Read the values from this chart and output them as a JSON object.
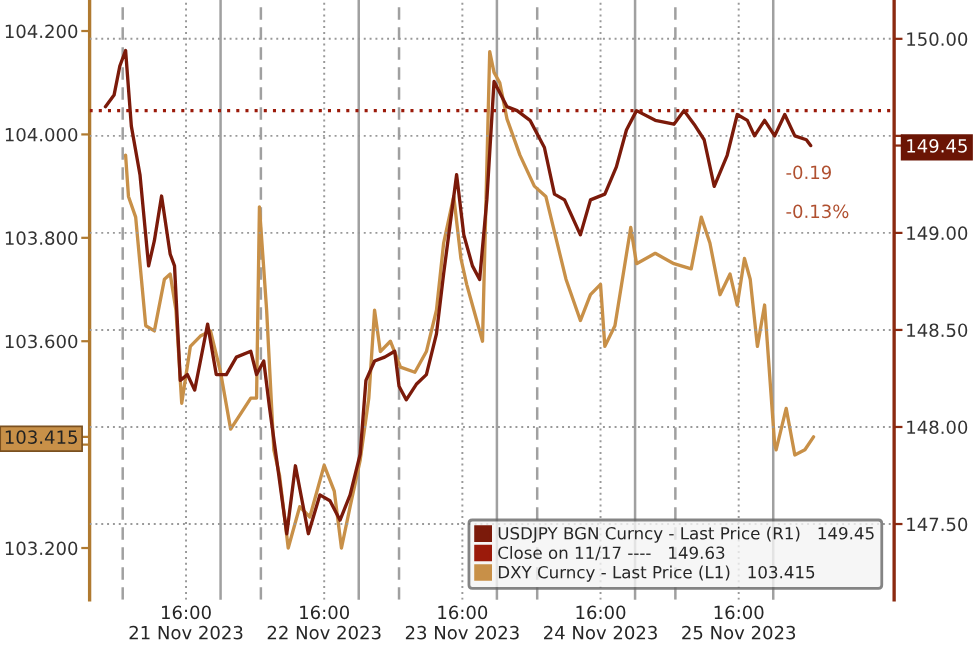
{
  "chart_data": {
    "type": "line",
    "xlim": [
      "2023-11-20T23:15",
      "2023-11-26T19:00"
    ],
    "xticks": [
      {
        "value": "2023-11-21T16:00",
        "label": "16:00\n21 Nov 2023"
      },
      {
        "value": "2023-11-22T16:00",
        "label": "16:00\n22 Nov 2023"
      },
      {
        "value": "2023-11-23T16:00",
        "label": "16:00\n23 Nov 2023"
      },
      {
        "value": "2023-11-24T16:00",
        "label": "16:00\n24 Nov 2023"
      },
      {
        "value": "2023-11-25T16:00",
        "label": "16:00\n25 Nov 2023"
      }
    ],
    "ylim": [
      103.1,
      104.26
    ],
    "yticks": [
      {
        "value": 103.2,
        "label": "103.200"
      },
      {
        "value": 103.4,
        "label": null
      },
      {
        "value": 103.6,
        "label": "103.600"
      },
      {
        "value": 103.8,
        "label": "103.800"
      },
      {
        "value": 104.0,
        "label": "104.000"
      },
      {
        "value": 104.2,
        "label": "104.200"
      },
      {
        "value": 103.415,
        "label": "103.415"
      }
    ],
    "y2lim": [
      147.11,
      150.2
    ],
    "y2ticks": [
      {
        "value": 147.5,
        "label": "147.50"
      },
      {
        "value": 148.0,
        "label": "148.00"
      },
      {
        "value": 148.5,
        "label": "148.50"
      },
      {
        "value": 149.0,
        "label": "149.00"
      },
      {
        "value": 149.5,
        "label": null
      },
      {
        "value": 150.0,
        "label": "150.00"
      },
      {
        "value": 149.45,
        "label": "149.45"
      }
    ],
    "grid": true,
    "legend": "bottom right",
    "series": [
      {
        "name": "USDJPY BGN Curncy - Last Price (R1)   149.45",
        "color": "#7b1a0a",
        "axis": "y2",
        "x": [
          "2023-11-21T02:00",
          "2023-11-21T03:30",
          "2023-11-21T04:30",
          "2023-11-21T05:30",
          "2023-11-21T06:30",
          "2023-11-21T08:00",
          "2023-11-21T09:30",
          "2023-11-21T10:30",
          "2023-11-21T11:45",
          "2023-11-21T13:15",
          "2023-11-21T14:00",
          "2023-11-21T15:00",
          "2023-11-21T16:15",
          "2023-11-21T17:30",
          "2023-11-21T18:30",
          "2023-11-21T19:45",
          "2023-11-21T21:15",
          "2023-11-21T23:00",
          "2023-11-22T00:45",
          "2023-11-22T03:15",
          "2023-11-22T04:15",
          "2023-11-22T05:30",
          "2023-11-22T06:30",
          "2023-11-22T07:45",
          "2023-11-22T09:30",
          "2023-11-22T11:00",
          "2023-11-22T13:15",
          "2023-11-22T15:15",
          "2023-11-22T17:00",
          "2023-11-22T18:45",
          "2023-11-22T20:30",
          "2023-11-22T22:15",
          "2023-11-22T23:15",
          "2023-11-23T00:45",
          "2023-11-23T02:30",
          "2023-11-23T04:15",
          "2023-11-23T05:00",
          "2023-11-23T06:15",
          "2023-11-23T08:00",
          "2023-11-23T09:45",
          "2023-11-23T11:30",
          "2023-11-23T12:45",
          "2023-11-23T15:00",
          "2023-11-23T16:15",
          "2023-11-23T17:45",
          "2023-11-23T19:00",
          "2023-11-23T20:15",
          "2023-11-23T21:30",
          "2023-11-23T23:45",
          "2023-11-24T01:30",
          "2023-11-24T03:45",
          "2023-11-24T06:15",
          "2023-11-24T08:00",
          "2023-11-24T09:45",
          "2023-11-24T12:30",
          "2023-11-24T14:15",
          "2023-11-24T16:45",
          "2023-11-24T18:45",
          "2023-11-24T20:30",
          "2023-11-24T22:15",
          "2023-11-25T01:30",
          "2023-11-25T04:45",
          "2023-11-25T06:30",
          "2023-11-25T08:15",
          "2023-11-25T10:00",
          "2023-11-25T11:45",
          "2023-11-25T14:00",
          "2023-11-25T15:45",
          "2023-11-25T17:30",
          "2023-11-25T18:45",
          "2023-11-25T20:30",
          "2023-11-25T22:15",
          "2023-11-26T00:00",
          "2023-11-26T01:45",
          "2023-11-26T03:45",
          "2023-11-26T04:30"
        ],
        "values": [
          149.65,
          149.71,
          149.86,
          149.94,
          149.55,
          149.3,
          148.83,
          148.96,
          149.19,
          148.89,
          148.83,
          148.24,
          148.27,
          148.19,
          148.34,
          148.53,
          148.27,
          148.27,
          148.36,
          148.39,
          148.27,
          148.34,
          148.1,
          147.83,
          147.45,
          147.8,
          147.45,
          147.65,
          147.62,
          147.52,
          147.65,
          147.86,
          148.24,
          148.34,
          148.36,
          148.39,
          148.21,
          148.14,
          148.22,
          148.27,
          148.48,
          148.79,
          149.3,
          148.99,
          148.83,
          148.76,
          149.17,
          149.78,
          149.65,
          149.63,
          149.58,
          149.44,
          149.2,
          149.17,
          148.99,
          149.17,
          149.2,
          149.34,
          149.53,
          149.63,
          149.58,
          149.56,
          149.63,
          149.56,
          149.48,
          149.24,
          149.4,
          149.61,
          149.58,
          149.5,
          149.58,
          149.5,
          149.61,
          149.5,
          149.48,
          149.45
        ]
      },
      {
        "name": "DXY Curncy - Last Price (L1)   103.415",
        "color": "#c89048",
        "x": [
          "2023-11-21T05:30",
          "2023-11-21T06:00",
          "2023-11-21T07:15",
          "2023-11-21T09:00",
          "2023-11-21T10:30",
          "2023-11-21T12:15",
          "2023-11-21T13:15",
          "2023-11-21T14:15",
          "2023-11-21T15:15",
          "2023-11-21T16:45",
          "2023-11-21T18:30",
          "2023-11-21T20:15",
          "2023-11-21T22:00",
          "2023-11-21T23:45",
          "2023-11-22T01:30",
          "2023-11-22T03:15",
          "2023-11-22T04:15",
          "2023-11-22T04:45",
          "2023-11-22T06:00",
          "2023-11-22T07:15",
          "2023-11-22T08:15",
          "2023-11-22T09:45",
          "2023-11-22T11:45",
          "2023-11-22T13:30",
          "2023-11-22T16:00",
          "2023-11-22T17:45",
          "2023-11-22T19:00",
          "2023-11-22T20:30",
          "2023-11-22T22:15",
          "2023-11-22T23:45",
          "2023-11-23T00:45",
          "2023-11-23T01:45",
          "2023-11-23T03:30",
          "2023-11-23T05:15",
          "2023-11-23T07:45",
          "2023-11-23T09:45",
          "2023-11-23T11:30",
          "2023-11-23T12:45",
          "2023-11-23T14:30",
          "2023-11-23T15:45",
          "2023-11-23T16:45",
          "2023-11-23T18:00",
          "2023-11-23T19:30",
          "2023-11-23T20:45",
          "2023-11-23T21:30",
          "2023-11-23T22:30",
          "2023-11-23T23:45",
          "2023-11-24T02:00",
          "2023-11-24T04:30",
          "2023-11-24T06:30",
          "2023-11-24T08:15",
          "2023-11-24T10:00",
          "2023-11-24T12:30",
          "2023-11-24T14:15",
          "2023-11-24T16:00",
          "2023-11-24T16:45",
          "2023-11-24T18:30",
          "2023-11-24T21:15",
          "2023-11-24T22:15",
          "2023-11-25T01:30",
          "2023-11-25T04:45",
          "2023-11-25T07:45",
          "2023-11-25T09:30",
          "2023-11-25T11:00",
          "2023-11-25T12:45",
          "2023-11-25T14:30",
          "2023-11-25T15:45",
          "2023-11-25T17:00",
          "2023-11-25T18:00",
          "2023-11-25T19:15",
          "2023-11-25T20:30",
          "2023-11-25T22:15",
          "2023-11-25T22:30",
          "2023-11-26T00:15",
          "2023-11-26T01:45",
          "2023-11-26T03:30",
          "2023-11-26T05:00"
        ],
        "values": [
          103.96,
          103.88,
          103.84,
          103.63,
          103.62,
          103.72,
          103.73,
          103.66,
          103.48,
          103.59,
          103.61,
          103.62,
          103.54,
          103.43,
          103.46,
          103.49,
          103.49,
          103.86,
          103.66,
          103.39,
          103.34,
          103.2,
          103.28,
          103.26,
          103.36,
          103.31,
          103.2,
          103.28,
          103.37,
          103.49,
          103.66,
          103.58,
          103.6,
          103.55,
          103.54,
          103.58,
          103.66,
          103.79,
          103.88,
          103.76,
          103.71,
          103.66,
          103.6,
          104.16,
          104.12,
          104.1,
          104.03,
          103.96,
          103.9,
          103.88,
          103.8,
          103.72,
          103.64,
          103.69,
          103.71,
          103.59,
          103.63,
          103.82,
          103.75,
          103.77,
          103.75,
          103.74,
          103.84,
          103.79,
          103.69,
          103.73,
          103.67,
          103.76,
          103.72,
          103.59,
          103.67,
          103.4,
          103.39,
          103.47,
          103.38,
          103.39,
          103.415
        ]
      }
    ],
    "ref_lines": [
      {
        "axis": "y2",
        "value": 149.63,
        "label": "Close on 11/17 ----   149.63",
        "color": "#9b1a0a",
        "line_style": "dotted"
      },
      {
        "axis": "x",
        "value": "2023-11-21T05:00",
        "color": "#a0a0a0",
        "line_style": "dashed"
      },
      {
        "axis": "x",
        "value": "2023-11-22T05:00",
        "color": "#a0a0a0",
        "line_style": "dashed"
      },
      {
        "axis": "x",
        "value": "2023-11-23T05:00",
        "color": "#a0a0a0",
        "line_style": "dashed"
      },
      {
        "axis": "x",
        "value": "2023-11-24T05:00",
        "color": "#a0a0a0",
        "line_style": "dashed"
      },
      {
        "axis": "x",
        "value": "2023-11-25T05:00",
        "color": "#a0a0a0",
        "line_style": "dashed"
      },
      {
        "axis": "x",
        "value": "2023-11-21T22:00",
        "color": "#a0a0a0",
        "line_style": "solid"
      },
      {
        "axis": "x",
        "value": "2023-11-22T22:00",
        "color": "#a0a0a0",
        "line_style": "solid"
      },
      {
        "axis": "x",
        "value": "2023-11-23T22:00",
        "color": "#a0a0a0",
        "line_style": "solid"
      },
      {
        "axis": "x",
        "value": "2023-11-24T22:00",
        "color": "#a0a0a0",
        "line_style": "solid"
      },
      {
        "axis": "x",
        "value": "2023-11-25T22:00",
        "color": "#a0a0a0",
        "line_style": "solid"
      }
    ],
    "annotations": [
      "-0.19",
      "-0.13%"
    ]
  }
}
